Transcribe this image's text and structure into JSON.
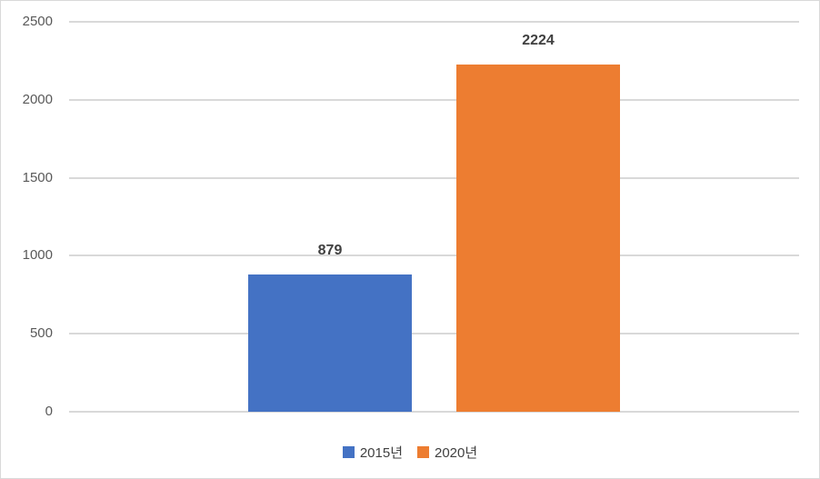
{
  "chart_data": {
    "type": "bar",
    "categories": [
      ""
    ],
    "series": [
      {
        "name": "2015년",
        "values": [
          879
        ],
        "color": "#4472C4"
      },
      {
        "name": "2020년",
        "values": [
          2224
        ],
        "color": "#ED7D31"
      }
    ],
    "title": "",
    "xlabel": "",
    "ylabel": "",
    "ylim": [
      0,
      2500
    ],
    "yticks": [
      0,
      500,
      1000,
      1500,
      2000,
      2500
    ],
    "grid": true,
    "legend_position": "bottom",
    "data_labels": true,
    "colors": {
      "gridline": "#D9D9D9",
      "chart_border": "#D9D9D9",
      "axis_text": "#595959",
      "data_label_text": "#404040",
      "legend_text": "#404040",
      "background": "#FFFFFF"
    }
  }
}
